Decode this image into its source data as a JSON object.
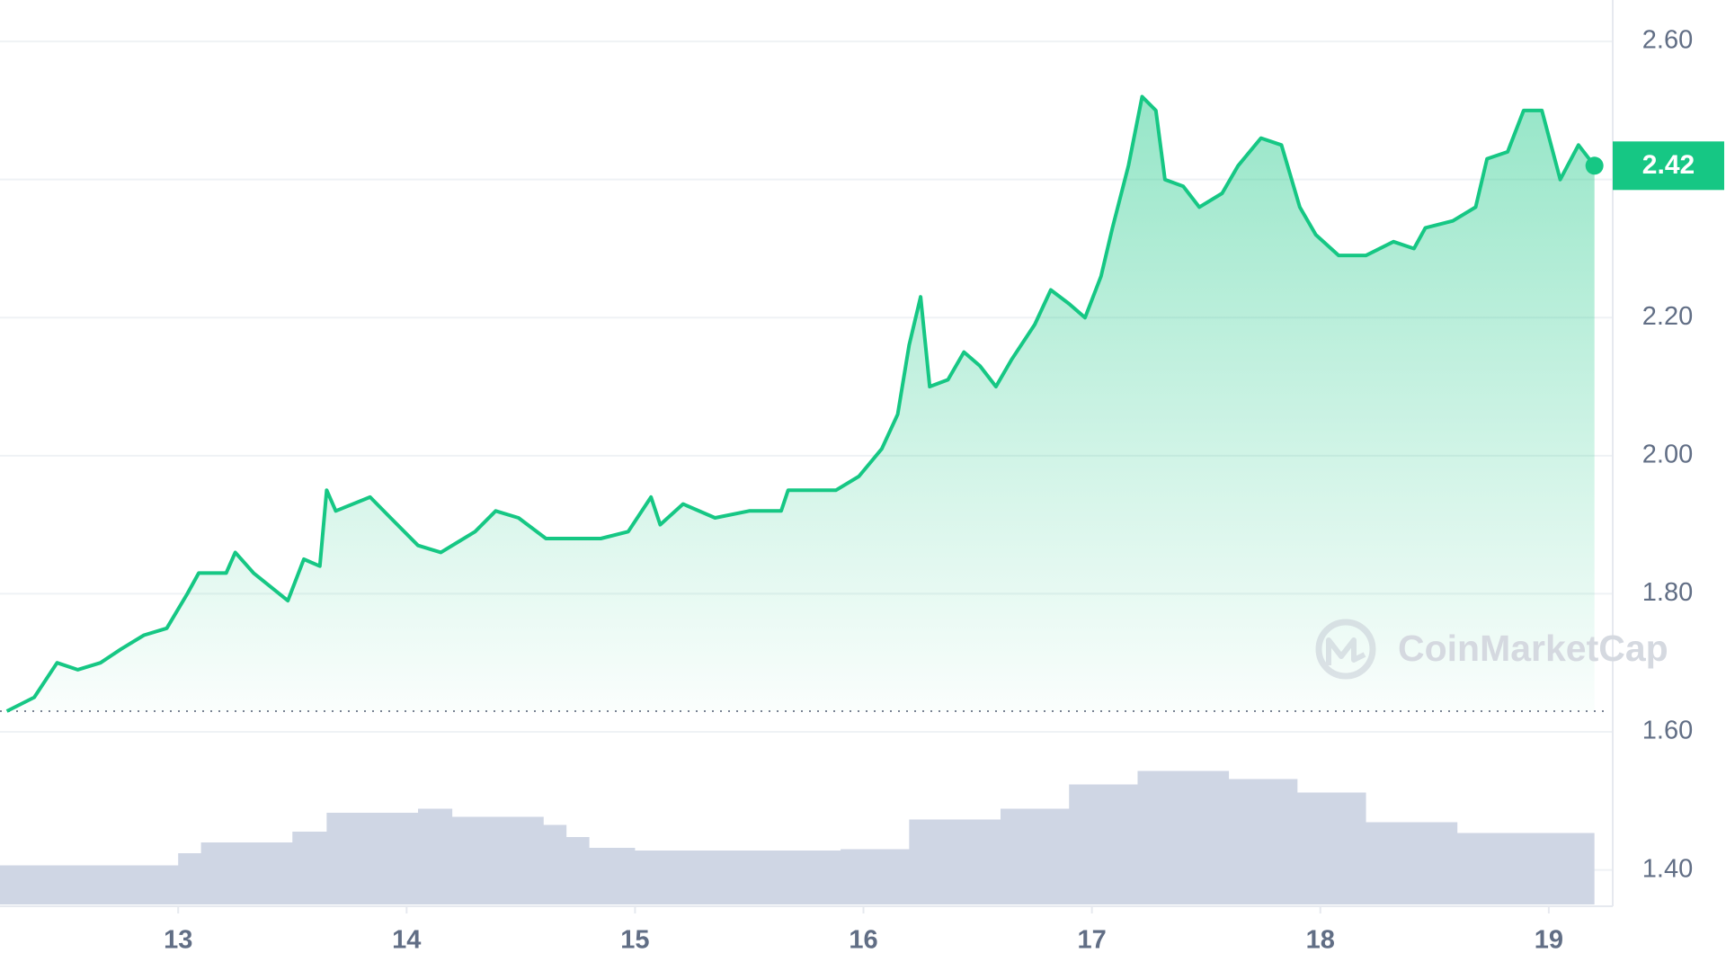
{
  "chart_data": [
    {
      "type": "line",
      "x": [
        12.25,
        12.37,
        12.47,
        12.56,
        12.66,
        12.75,
        12.85,
        12.95,
        13.04,
        13.09,
        13.21,
        13.25,
        13.33,
        13.48,
        13.55,
        13.62,
        13.65,
        13.69,
        13.84,
        13.93,
        14.05,
        14.15,
        14.3,
        14.39,
        14.49,
        14.61,
        14.73,
        14.85,
        14.97,
        15.07,
        15.11,
        15.21,
        15.35,
        15.5,
        15.64,
        15.67,
        15.88,
        15.98,
        16.08,
        16.15,
        16.2,
        16.25,
        16.29,
        16.37,
        16.44,
        16.51,
        16.58,
        16.65,
        16.75,
        16.82,
        16.9,
        16.97,
        17.04,
        17.09,
        17.16,
        17.22,
        17.28,
        17.32,
        17.4,
        17.47,
        17.57,
        17.64,
        17.74,
        17.83,
        17.91,
        17.98,
        18.08,
        18.2,
        18.32,
        18.41,
        18.46,
        18.58,
        18.68,
        18.73,
        18.82,
        18.89,
        18.97,
        19.05,
        19.13,
        19.2
      ],
      "values": [
        1.63,
        1.65,
        1.7,
        1.69,
        1.7,
        1.72,
        1.74,
        1.75,
        1.8,
        1.83,
        1.83,
        1.86,
        1.83,
        1.79,
        1.85,
        1.84,
        1.95,
        1.92,
        1.94,
        1.91,
        1.87,
        1.86,
        1.89,
        1.92,
        1.91,
        1.88,
        1.88,
        1.88,
        1.89,
        1.94,
        1.9,
        1.93,
        1.91,
        1.92,
        1.92,
        1.95,
        1.95,
        1.97,
        2.01,
        2.06,
        2.16,
        2.23,
        2.1,
        2.11,
        2.15,
        2.13,
        2.1,
        2.14,
        2.19,
        2.24,
        2.22,
        2.2,
        2.26,
        2.33,
        2.42,
        2.52,
        2.5,
        2.4,
        2.39,
        2.36,
        2.38,
        2.42,
        2.46,
        2.45,
        2.36,
        2.32,
        2.29,
        2.29,
        2.31,
        2.3,
        2.33,
        2.34,
        2.36,
        2.43,
        2.44,
        2.5,
        2.5,
        2.4,
        2.45,
        2.42
      ],
      "color": "#16c784",
      "baseline": 1.63,
      "xlim": [
        12.22,
        19.28
      ],
      "xticks": [
        13,
        14,
        15,
        16,
        17,
        18,
        19
      ],
      "ylim": [
        1.35,
        2.66
      ],
      "yticks": [
        {
          "value": 1.4,
          "label": "1.40"
        },
        {
          "value": 1.6,
          "label": "1.60"
        },
        {
          "value": 1.8,
          "label": "1.80"
        },
        {
          "value": 2.0,
          "label": "2.00"
        },
        {
          "value": 2.2,
          "label": "2.20"
        },
        {
          "value": 2.4,
          "label": "2.40"
        },
        {
          "value": 2.6,
          "label": "2.60"
        }
      ],
      "grid": true,
      "watermark": "CoinMarketCap"
    },
    {
      "type": "area",
      "x": [
        12.22,
        13.0,
        13.1,
        13.5,
        13.65,
        14.05,
        14.2,
        14.6,
        14.7,
        14.8,
        15.0,
        15.9,
        16.2,
        16.6,
        16.9,
        17.2,
        17.6,
        17.9,
        18.2,
        18.6,
        19.2
      ],
      "values": [
        29,
        38,
        46,
        54,
        68,
        71,
        65,
        59,
        50,
        42,
        40,
        41,
        63,
        71,
        89,
        99,
        93,
        83,
        61,
        53,
        65
      ],
      "color": "#cfd6e4",
      "ylim": [
        0,
        100
      ]
    }
  ]
}
